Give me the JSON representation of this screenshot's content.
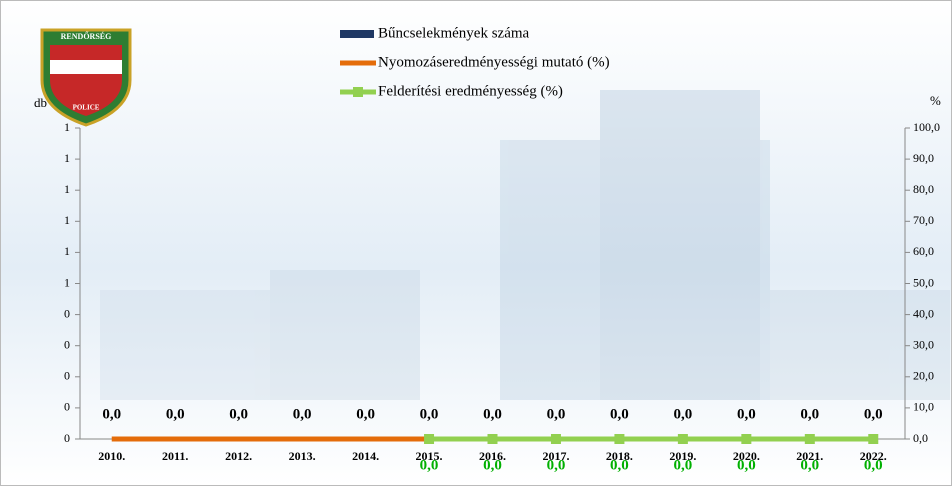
{
  "logo": {
    "top": "RENDŐRSÉG",
    "bottom": "POLICE"
  },
  "chart_data": {
    "type": "bar-line",
    "y_label": "db",
    "y2_label": "%",
    "categories": [
      "2010.",
      "2011.",
      "2012.",
      "2013.",
      "2014.",
      "2015.",
      "2016.",
      "2017.",
      "2018.",
      "2019.",
      "2020.",
      "2021.",
      "2022."
    ],
    "series": [
      {
        "name": "Bűncselekmények száma",
        "kind": "bar",
        "color": "#1f3864",
        "axis": "y",
        "values": [
          0,
          0,
          0,
          0,
          0,
          0,
          0,
          0,
          0,
          0,
          0,
          0,
          0
        ],
        "value_labels": [
          "0,0",
          "0,0",
          "0,0",
          "0,0",
          "0,0",
          "0,0",
          "0,0",
          "0,0",
          "0,0",
          "0,0",
          "0,0",
          "0,0",
          "0,0"
        ]
      },
      {
        "name": "Nyomozáseredményességi mutató (%)",
        "kind": "line",
        "color": "#e46c0a",
        "axis": "y2",
        "values": [
          0,
          0,
          0,
          0,
          0,
          0,
          null,
          null,
          null,
          null,
          null,
          null,
          null
        ]
      },
      {
        "name": "Felderítési eredményesség (%)",
        "kind": "line",
        "marker": "square",
        "color": "#92d050",
        "label_color": "#00b000",
        "axis": "y2",
        "values": [
          null,
          null,
          null,
          null,
          null,
          0,
          0,
          0,
          0,
          0,
          0,
          0,
          0
        ],
        "value_labels": [
          null,
          null,
          null,
          null,
          null,
          "0,0",
          "0,0",
          "0,0",
          "0,0",
          "0,0",
          "0,0",
          "0,0",
          "0,0"
        ]
      }
    ],
    "ylim": [
      0,
      1
    ],
    "yticks": [
      {
        "value": 0,
        "label": "0"
      },
      {
        "value": 0.1,
        "label": "0"
      },
      {
        "value": 0.2,
        "label": "0"
      },
      {
        "value": 0.3,
        "label": "0"
      },
      {
        "value": 0.4,
        "label": "0"
      },
      {
        "value": 0.5,
        "label": "1"
      },
      {
        "value": 0.6,
        "label": "1"
      },
      {
        "value": 0.7,
        "label": "1"
      },
      {
        "value": 0.8,
        "label": "1"
      },
      {
        "value": 0.9,
        "label": "1"
      },
      1
    ],
    "y2lim": [
      0,
      100
    ],
    "y2ticks": [
      {
        "value": 0,
        "label": "0,0"
      },
      {
        "value": 10,
        "label": "10,0"
      },
      {
        "value": 20,
        "label": "20,0"
      },
      {
        "value": 30,
        "label": "30,0"
      },
      {
        "value": 40,
        "label": "40,0"
      },
      {
        "value": 50,
        "label": "50,0"
      },
      {
        "value": 60,
        "label": "60,0"
      },
      {
        "value": 70,
        "label": "70,0"
      },
      {
        "value": 80,
        "label": "80,0"
      },
      {
        "value": 90,
        "label": "90,0"
      },
      {
        "value": 100,
        "label": "100,0"
      }
    ]
  }
}
